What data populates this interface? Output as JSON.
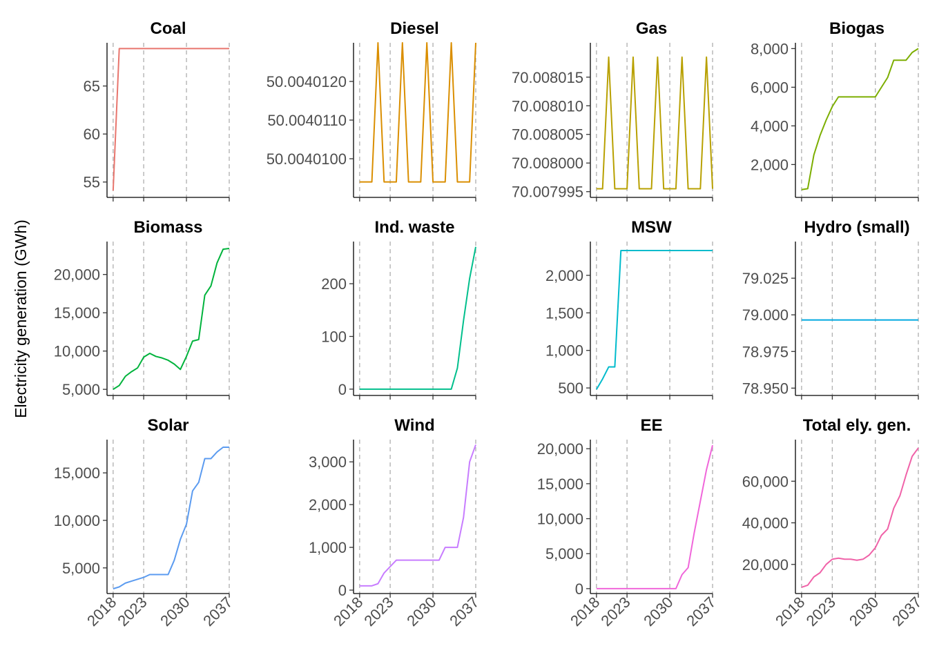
{
  "y_axis_label": "Electricity generation (GWh)",
  "chart_data": {
    "type": "line",
    "layout": "facet-grid 3x4, independent y scales",
    "grid": "dashed vertical lines at 2018, 2023, 2030, 2037; no horizontal grid",
    "x_ticks": [
      2018,
      2023,
      2030,
      2037
    ],
    "xlim": [
      2017,
      2037
    ],
    "facets": [
      {
        "title": "Coal",
        "color": "#E8756D",
        "ylim": [
          53.4,
          69.5
        ],
        "yticks": [
          55,
          60,
          65
        ],
        "ytick_labels": [
          "55",
          "60",
          "65"
        ],
        "x": [
          2018,
          2019,
          2020,
          2025,
          2030,
          2037
        ],
        "y": [
          54.1,
          68.9,
          68.9,
          68.9,
          68.9,
          68.9
        ]
      },
      {
        "title": "Diesel",
        "color": "#DA8E00",
        "ylim": [
          50.004009,
          50.004013
        ],
        "yticks": [
          50.00401,
          50.004011,
          50.004012
        ],
        "ytick_labels": [
          "50.0040100",
          "50.0040110",
          "50.0040120"
        ],
        "x": [
          2018,
          2020,
          2021,
          2022,
          2024,
          2025,
          2026,
          2028,
          2029,
          2030,
          2032,
          2033,
          2034,
          2036,
          2037
        ],
        "y": [
          50.0040094,
          50.0040094,
          50.004013,
          50.0040094,
          50.0040094,
          50.004013,
          50.0040094,
          50.0040094,
          50.004013,
          50.0040094,
          50.0040094,
          50.004013,
          50.0040094,
          50.0040094,
          50.004013
        ]
      },
      {
        "title": "Gas",
        "color": "#B8A000",
        "ylim": [
          70.007994,
          70.008021
        ],
        "yticks": [
          70.007995,
          70.008,
          70.008005,
          70.00801,
          70.008015
        ],
        "ytick_labels": [
          "70.007995",
          "70.008000",
          "70.008005",
          "70.008010",
          "70.008015"
        ],
        "x": [
          2018,
          2019,
          2020,
          2021,
          2023,
          2024,
          2025,
          2027,
          2028,
          2029,
          2031,
          2032,
          2033,
          2035,
          2036,
          2037
        ],
        "y": [
          70.0079955,
          70.0079955,
          70.0080185,
          70.0079955,
          70.0079955,
          70.0080185,
          70.0079955,
          70.0079955,
          70.0080185,
          70.0079955,
          70.0079955,
          70.0080185,
          70.0079955,
          70.0079955,
          70.0080185,
          70.0079955
        ]
      },
      {
        "title": "Biogas",
        "color": "#7CAE00",
        "ylim": [
          300,
          8300
        ],
        "yticks": [
          2000,
          4000,
          6000,
          8000
        ],
        "ytick_labels": [
          "2,000",
          "4,000",
          "6,000",
          "8,000"
        ],
        "x": [
          2018,
          2019,
          2020,
          2021,
          2022,
          2023,
          2024,
          2025,
          2026,
          2027,
          2028,
          2029,
          2030,
          2031,
          2032,
          2033,
          2034,
          2035,
          2036,
          2037
        ],
        "y": [
          700,
          750,
          2500,
          3500,
          4300,
          5000,
          5500,
          5500,
          5500,
          5500,
          5500,
          5500,
          5500,
          6000,
          6500,
          7400,
          7400,
          7400,
          7800,
          8000
        ]
      },
      {
        "title": "Biomass",
        "color": "#00B33C",
        "ylim": [
          4200,
          24300
        ],
        "yticks": [
          5000,
          10000,
          15000,
          20000
        ],
        "ytick_labels": [
          "5,000",
          "10,000",
          "15,000",
          "20,000"
        ],
        "x": [
          2018,
          2019,
          2020,
          2021,
          2022,
          2023,
          2024,
          2025,
          2026,
          2027,
          2028,
          2029,
          2030,
          2031,
          2032,
          2033,
          2034,
          2035,
          2036,
          2037
        ],
        "y": [
          5000,
          5500,
          6700,
          7300,
          7800,
          9200,
          9700,
          9300,
          9100,
          8800,
          8300,
          7600,
          9300,
          11300,
          11500,
          17300,
          18500,
          21500,
          23300,
          23400
        ]
      },
      {
        "title": "Ind. waste",
        "color": "#00BF8C",
        "ylim": [
          -12,
          280
        ],
        "yticks": [
          0,
          100,
          200
        ],
        "ytick_labels": [
          "0",
          "100",
          "200"
        ],
        "x": [
          2018,
          2025,
          2032,
          2033,
          2034,
          2035,
          2036,
          2037
        ],
        "y": [
          0,
          0,
          0,
          0,
          40,
          130,
          210,
          270
        ]
      },
      {
        "title": "MSW",
        "color": "#00BBCC",
        "ylim": [
          400,
          2450
        ],
        "yticks": [
          500,
          1000,
          1500,
          2000
        ],
        "ytick_labels": [
          "500",
          "1,000",
          "1,500",
          "2,000"
        ],
        "x": [
          2018,
          2019,
          2020,
          2021,
          2022,
          2023,
          2030,
          2037
        ],
        "y": [
          480,
          620,
          780,
          780,
          2330,
          2330,
          2330,
          2330
        ]
      },
      {
        "title": "Hydro (small)",
        "color": "#00A9E0",
        "ylim": [
          78.945,
          79.05
        ],
        "yticks": [
          78.95,
          78.975,
          79.0,
          79.025
        ],
        "ytick_labels": [
          "78.950",
          "78.975",
          "79.000",
          "79.025"
        ],
        "x": [
          2018,
          2037
        ],
        "y": [
          78.9965,
          78.9965
        ]
      },
      {
        "title": "Solar",
        "color": "#5B9BF0",
        "ylim": [
          2300,
          18500
        ],
        "yticks": [
          5000,
          10000,
          15000
        ],
        "ytick_labels": [
          "5,000",
          "10,000",
          "15,000"
        ],
        "x": [
          2018,
          2019,
          2020,
          2021,
          2022,
          2023,
          2024,
          2025,
          2026,
          2027,
          2028,
          2029,
          2030,
          2031,
          2032,
          2033,
          2034,
          2035,
          2036,
          2037
        ],
        "y": [
          2800,
          3000,
          3400,
          3600,
          3800,
          4000,
          4300,
          4300,
          4300,
          4300,
          5800,
          8000,
          9600,
          13100,
          14000,
          16500,
          16500,
          17200,
          17700,
          17700
        ]
      },
      {
        "title": "Wind",
        "color": "#C77CFF",
        "ylim": [
          -80,
          3520
        ],
        "yticks": [
          0,
          1000,
          2000,
          3000
        ],
        "ytick_labels": [
          "0",
          "1,000",
          "2,000",
          "3,000"
        ],
        "x": [
          2018,
          2019,
          2020,
          2021,
          2022,
          2023,
          2024,
          2025,
          2030,
          2031,
          2032,
          2033,
          2034,
          2035,
          2036,
          2037
        ],
        "y": [
          100,
          100,
          100,
          150,
          400,
          550,
          700,
          700,
          700,
          700,
          1000,
          1000,
          1000,
          1700,
          3000,
          3400
        ]
      },
      {
        "title": "EE",
        "color": "#F066DA",
        "ylim": [
          -700,
          21300
        ],
        "yticks": [
          0,
          5000,
          10000,
          15000,
          20000
        ],
        "ytick_labels": [
          "0",
          "5,000",
          "10,000",
          "15,000",
          "20,000"
        ],
        "x": [
          2018,
          2025,
          2031,
          2032,
          2033,
          2034,
          2035,
          2036,
          2037
        ],
        "y": [
          0,
          0,
          0,
          2000,
          3000,
          8000,
          12500,
          17000,
          20500
        ]
      },
      {
        "title": "Total ely. gen.",
        "color": "#F062A8",
        "ylim": [
          6000,
          80000
        ],
        "yticks": [
          20000,
          40000,
          60000
        ],
        "ytick_labels": [
          "20,000",
          "40,000",
          "60,000"
        ],
        "x": [
          2018,
          2019,
          2020,
          2021,
          2022,
          2023,
          2024,
          2025,
          2026,
          2027,
          2028,
          2029,
          2030,
          2031,
          2032,
          2033,
          2034,
          2035,
          2036,
          2037
        ],
        "y": [
          9000,
          10000,
          14000,
          16000,
          20000,
          22500,
          23000,
          22500,
          22500,
          22000,
          22500,
          24500,
          28000,
          34000,
          37000,
          47000,
          53000,
          63000,
          72000,
          76000
        ]
      }
    ]
  }
}
